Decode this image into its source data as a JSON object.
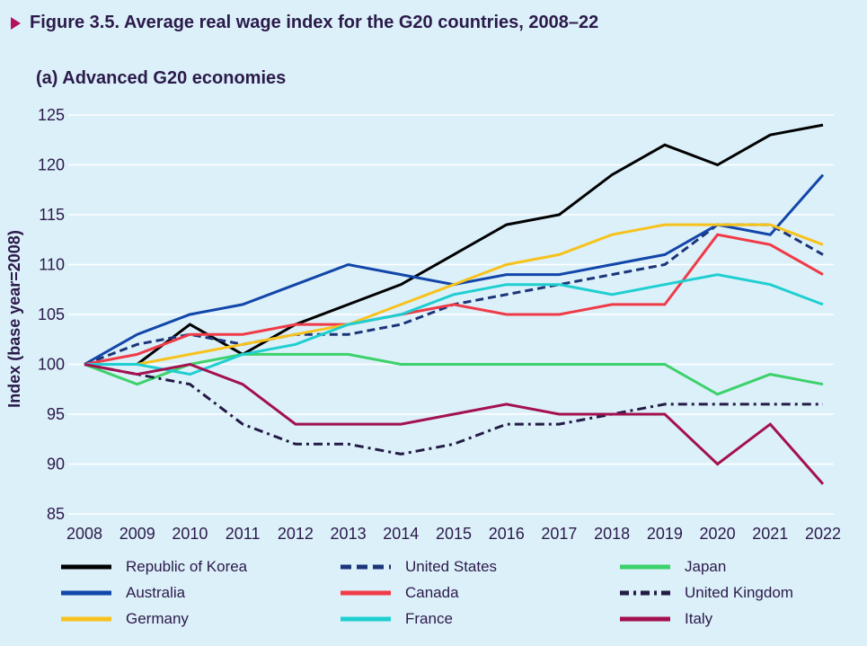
{
  "figure_title": "Figure 3.5.  Average real wage index for the G20 countries, 2008–22",
  "chart_data": {
    "type": "line",
    "title": "Figure 3.5.  Average real wage index for the G20 countries, 2008–22",
    "subtitle": "(a) Advanced G20 economies",
    "xlabel": "",
    "ylabel": "Index (base year=2008)",
    "ylim": [
      85,
      125
    ],
    "y_ticks": [
      85,
      90,
      95,
      100,
      105,
      110,
      115,
      120,
      125
    ],
    "x": [
      "2008",
      "2009",
      "2010",
      "2011",
      "2012",
      "2013",
      "2014",
      "2015",
      "2016",
      "2017",
      "2018",
      "2019",
      "2020",
      "2021",
      "2022"
    ],
    "grid": true,
    "series": [
      {
        "name": "Republic of Korea",
        "color": "#000000",
        "style": "solid",
        "values": [
          100,
          100,
          104,
          101,
          104,
          106,
          108,
          111,
          114,
          115,
          119,
          122,
          120,
          123,
          124
        ]
      },
      {
        "name": "United States",
        "color": "#1c3578",
        "style": "dashed",
        "values": [
          100,
          102,
          103,
          102,
          103,
          103,
          104,
          106,
          107,
          108,
          109,
          110,
          114,
          114,
          111
        ]
      },
      {
        "name": "Japan",
        "color": "#3dd16b",
        "style": "solid",
        "values": [
          100,
          98,
          100,
          101,
          101,
          101,
          100,
          100,
          100,
          100,
          100,
          100,
          97,
          99,
          98
        ]
      },
      {
        "name": "Australia",
        "color": "#1246a8",
        "style": "solid",
        "values": [
          100,
          103,
          105,
          106,
          108,
          110,
          109,
          108,
          109,
          109,
          110,
          111,
          114,
          113,
          119
        ]
      },
      {
        "name": "Canada",
        "color": "#ef3b47",
        "style": "solid",
        "values": [
          100,
          101,
          103,
          103,
          104,
          104,
          105,
          106,
          105,
          105,
          106,
          106,
          113,
          112,
          109
        ]
      },
      {
        "name": "United Kingdom",
        "color": "#241b45",
        "style": "dashdot",
        "values": [
          100,
          99,
          98,
          94,
          92,
          92,
          91,
          92,
          94,
          94,
          95,
          96,
          96,
          96,
          96
        ]
      },
      {
        "name": "Germany",
        "color": "#f7c21c",
        "style": "solid",
        "values": [
          100,
          100,
          101,
          102,
          103,
          104,
          106,
          108,
          110,
          111,
          113,
          114,
          114,
          114,
          112
        ]
      },
      {
        "name": "France",
        "color": "#1fcfd0",
        "style": "solid",
        "values": [
          100,
          100,
          99,
          101,
          102,
          104,
          105,
          107,
          108,
          108,
          107,
          108,
          109,
          108,
          106
        ]
      },
      {
        "name": "Italy",
        "color": "#a3114f",
        "style": "solid",
        "values": [
          100,
          99,
          100,
          98,
          94,
          94,
          94,
          95,
          96,
          95,
          95,
          95,
          90,
          94,
          88
        ]
      }
    ]
  }
}
